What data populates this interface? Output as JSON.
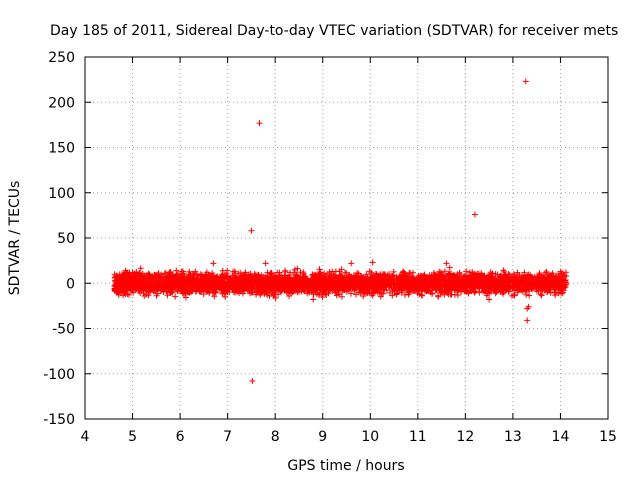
{
  "chart_data": {
    "type": "scatter",
    "title": "Day 185 of 2011, Sidereal Day-to-day VTEC variation (SDTVAR) for receiver mets",
    "xlabel": "GPS time / hours",
    "ylabel": "SDTVAR / TECUs",
    "xlim": [
      4,
      15
    ],
    "ylim": [
      -150,
      250
    ],
    "xticks": [
      "4",
      "5",
      "6",
      "7",
      "8",
      "9",
      "10",
      "11",
      "12",
      "13",
      "14",
      "15"
    ],
    "yticks": [
      "-150",
      "-100",
      "-50",
      "0",
      "50",
      "100",
      "150",
      "200",
      "250"
    ],
    "grid": true,
    "marker": "+",
    "color": "#ff0000",
    "dense_band": {
      "x_range": [
        4.62,
        14.12
      ],
      "y_center": 0,
      "y_spread_typical": [
        -15,
        15
      ],
      "description_points_count": 4000
    },
    "outliers": [
      {
        "x": 5.92,
        "y": 14
      },
      {
        "x": 6.7,
        "y": 22
      },
      {
        "x": 6.95,
        "y": -15
      },
      {
        "x": 7.5,
        "y": 58
      },
      {
        "x": 7.52,
        "y": -108
      },
      {
        "x": 7.67,
        "y": 177
      },
      {
        "x": 7.8,
        "y": 22
      },
      {
        "x": 8.8,
        "y": -18
      },
      {
        "x": 9.6,
        "y": 22
      },
      {
        "x": 10.05,
        "y": 23
      },
      {
        "x": 11.6,
        "y": 22
      },
      {
        "x": 12.2,
        "y": 76
      },
      {
        "x": 12.5,
        "y": -18
      },
      {
        "x": 12.98,
        "y": -14
      },
      {
        "x": 13.27,
        "y": 223
      },
      {
        "x": 13.3,
        "y": -28
      },
      {
        "x": 13.33,
        "y": -26
      },
      {
        "x": 13.3,
        "y": -41
      }
    ]
  }
}
